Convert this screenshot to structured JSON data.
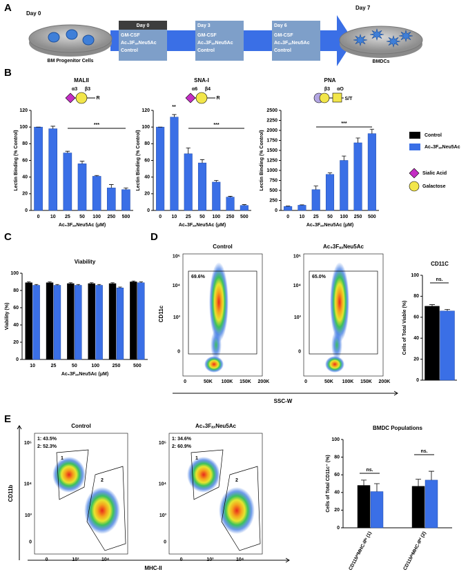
{
  "panels": [
    "A",
    "B",
    "C",
    "D",
    "E"
  ],
  "schematic": {
    "start_label": "Day 0",
    "start_caption": "BM Progenitor Cells",
    "steps": [
      {
        "day": "Day 0",
        "lines": [
          "GM-CSF",
          "Ac₅3FₐₓNeu5Ac",
          "Control"
        ]
      },
      {
        "day": "Day 3",
        "lines": [
          "GM-CSF",
          "Ac₅3FₐₓNeu5Ac",
          "Control"
        ]
      },
      {
        "day": "Day 6",
        "lines": [
          "GM-CSF",
          "Ac₅3FₐₓNeu5Ac",
          "Control"
        ]
      }
    ],
    "end_label": "Day 7",
    "end_caption": "BMDCs"
  },
  "legend": {
    "items": [
      {
        "name": "Control",
        "color": "#000000"
      },
      {
        "name": "Ac₅3FₐₓNeu5Ac",
        "color": "#3a6fe6"
      }
    ],
    "symbols": [
      {
        "name": "Sialic Acid",
        "color": "#c42ec4"
      },
      {
        "name": "Galactose",
        "color": "#f2e64a"
      }
    ]
  },
  "chart_data": [
    {
      "type": "bar",
      "title": "MALII",
      "glycan": [
        "α3",
        "β3",
        "R"
      ],
      "ylabel": "Lectin Binding (% Control)",
      "xlabel": "Ac₅3FₐₓNeu5Ac (μM)",
      "categories": [
        "0",
        "10",
        "25",
        "50",
        "100",
        "250",
        "500"
      ],
      "values": [
        100,
        98,
        69,
        56,
        41,
        27,
        25
      ],
      "errors": [
        0,
        3,
        2,
        3,
        1,
        4,
        2
      ],
      "color": "#3a6fe6",
      "ylim": [
        0,
        120
      ],
      "yticks": [
        0,
        20,
        40,
        60,
        80,
        100,
        120
      ],
      "annotations": [
        {
          "text": "***"
        }
      ]
    },
    {
      "type": "bar",
      "title": "SNA-I",
      "glycan": [
        "α6",
        "β4",
        "R"
      ],
      "ylabel": "Lectin Binding (% Control)",
      "xlabel": "Ac₅3FₐₓNeu5Ac (μM)",
      "categories": [
        "0",
        "10",
        "25",
        "50",
        "100",
        "250",
        "500"
      ],
      "values": [
        100,
        112,
        68,
        57,
        34,
        16,
        6
      ],
      "errors": [
        0,
        3,
        7,
        4,
        2,
        1,
        1
      ],
      "color": "#3a6fe6",
      "ylim": [
        0,
        120
      ],
      "yticks": [
        0,
        20,
        40,
        60,
        80,
        100,
        120
      ],
      "annotations": [
        {
          "text": "**"
        },
        {
          "text": "***"
        }
      ]
    },
    {
      "type": "bar",
      "title": "PNA",
      "glycan": [
        "β3",
        "αO",
        "S/T"
      ],
      "ylabel": "Lectin Binding (% Control)",
      "xlabel": "Ac₅3FₐₓNeu5Ac (μM)",
      "categories": [
        "0",
        "10",
        "25",
        "50",
        "100",
        "250",
        "500"
      ],
      "values": [
        100,
        130,
        520,
        900,
        1250,
        1690,
        1920
      ],
      "errors": [
        10,
        10,
        90,
        40,
        110,
        120,
        110
      ],
      "color": "#3a6fe6",
      "ylim": [
        0,
        2500
      ],
      "yticks": [
        0,
        250,
        500,
        750,
        1000,
        1250,
        1500,
        1750,
        2000,
        2250,
        2500
      ],
      "annotations": [
        {
          "text": "***"
        }
      ]
    },
    {
      "type": "bar",
      "title": "Viability",
      "ylabel": "Viability (%)",
      "xlabel": "Ac₅3FₐₓNeu5Ac (μM)",
      "categories": [
        "10",
        "25",
        "50",
        "100",
        "250",
        "500"
      ],
      "series": [
        {
          "color": "#000000",
          "values": [
            89,
            89,
            88,
            88,
            88,
            90
          ],
          "errors": [
            1,
            1,
            1,
            1,
            1,
            1
          ]
        },
        {
          "color": "#3a6fe6",
          "values": [
            86,
            86,
            86,
            86,
            83,
            89
          ],
          "errors": [
            1,
            1,
            1,
            1,
            1,
            1
          ]
        }
      ],
      "ylim": [
        0,
        100
      ],
      "yticks": [
        0,
        20,
        40,
        60,
        80,
        100
      ]
    },
    {
      "type": "bar",
      "title": "CD11C",
      "ylabel": "Cells of Total Viable (%)",
      "categories": [
        null
      ],
      "series": [
        {
          "color": "#000000",
          "values": [
            70.5
          ],
          "errors": [
            1.5
          ]
        },
        {
          "color": "#3a6fe6",
          "values": [
            66
          ],
          "errors": [
            1.5
          ]
        }
      ],
      "ylim": [
        0,
        100
      ],
      "yticks": [
        0,
        20,
        40,
        60,
        80,
        100
      ],
      "annotations": [
        {
          "text": "ns."
        }
      ]
    },
    {
      "type": "bar",
      "title": "BMDC Populations",
      "ylabel": "Cells of Total CD11c⁺ (%)",
      "categories": [
        "CD11bʰⁱMHC-IIˡᵒ (1)",
        "CD11bˡᵒMHC-IIʰⁱ (2)"
      ],
      "series": [
        {
          "color": "#000000",
          "values": [
            48,
            47
          ],
          "errors": [
            6,
            8
          ]
        },
        {
          "color": "#3a6fe6",
          "values": [
            41,
            54
          ],
          "errors": [
            9,
            10
          ]
        }
      ],
      "ylim": [
        0,
        100
      ],
      "yticks": [
        0,
        20,
        40,
        60,
        80,
        100
      ],
      "annotations": [
        {
          "text": "ns."
        },
        {
          "text": "ns."
        }
      ]
    }
  ],
  "flow": {
    "D": {
      "ylabel": "CD11c",
      "xlabel": "SSC-W",
      "yticks": [
        "0",
        "10³",
        "10⁴",
        "10⁵"
      ],
      "xticks": [
        "0",
        "50K",
        "100K",
        "150K",
        "200K"
      ],
      "plots": [
        {
          "title": "Control",
          "gates": [
            "69.6%"
          ]
        },
        {
          "title": "Ac₅3FₐₓNeu5Ac",
          "gates": [
            "65.0%"
          ]
        }
      ]
    },
    "E": {
      "ylabel": "CD11b",
      "xlabel": "MHC-II",
      "yticks": [
        "0",
        "10³",
        "10⁴",
        "10⁵"
      ],
      "xticks": [
        "0",
        "10³",
        "10⁴"
      ],
      "gate_labels": [
        "1",
        "2"
      ],
      "plots": [
        {
          "title": "Control",
          "gates": [
            "1: 43.5%",
            "2: 52.3%"
          ]
        },
        {
          "title": "Ac₅3FₐₓNeu5Ac",
          "gates": [
            "1: 34.6%",
            "2: 60.9%"
          ]
        }
      ]
    }
  }
}
